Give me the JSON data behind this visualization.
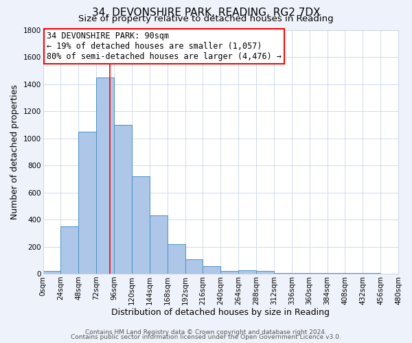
{
  "title": "34, DEVONSHIRE PARK, READING, RG2 7DX",
  "subtitle": "Size of property relative to detached houses in Reading",
  "xlabel": "Distribution of detached houses by size in Reading",
  "ylabel": "Number of detached properties",
  "bar_edges": [
    0,
    24,
    48,
    72,
    96,
    120,
    144,
    168,
    192,
    216,
    240,
    264,
    288,
    312,
    336,
    360,
    384,
    408,
    432,
    456,
    480
  ],
  "bar_heights": [
    20,
    350,
    1050,
    1450,
    1100,
    720,
    430,
    220,
    105,
    55,
    20,
    25,
    20,
    5,
    5,
    5,
    5,
    5,
    5,
    0
  ],
  "bar_color": "#aec6e8",
  "bar_edge_color": "#4a90c4",
  "property_line_x": 90,
  "property_line_color": "red",
  "annotation_line1": "34 DEVONSHIRE PARK: 90sqm",
  "annotation_line2": "← 19% of detached houses are smaller (1,057)",
  "annotation_line3": "80% of semi-detached houses are larger (4,476) →",
  "annotation_box_color": "white",
  "annotation_box_edge_color": "red",
  "ylim": [
    0,
    1800
  ],
  "xlim": [
    0,
    480
  ],
  "ytick_interval": 200,
  "footer_line1": "Contains HM Land Registry data © Crown copyright and database right 2024.",
  "footer_line2": "Contains public sector information licensed under the Open Government Licence v3.0.",
  "background_color": "#eef2fa",
  "plot_background_color": "white",
  "grid_color": "#c8d4e8",
  "title_fontsize": 11,
  "subtitle_fontsize": 9.5,
  "axis_label_fontsize": 9,
  "tick_fontsize": 7.5,
  "annotation_fontsize": 8.5,
  "footer_fontsize": 6.5
}
